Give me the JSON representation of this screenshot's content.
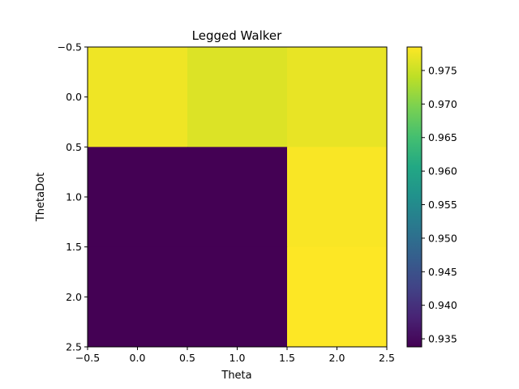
{
  "chart_data": {
    "type": "heatmap",
    "title": "Legged Walker",
    "xlabel": "Theta",
    "ylabel": "ThetaDot",
    "x_centers": [
      0,
      1,
      2
    ],
    "y_centers": [
      0,
      1,
      2
    ],
    "xlim": [
      -0.5,
      2.5
    ],
    "ylim": [
      2.5,
      -0.5
    ],
    "y_inverted": true,
    "x_ticks": [
      "−0.5",
      "0.0",
      "0.5",
      "1.0",
      "1.5",
      "2.0",
      "2.5"
    ],
    "y_ticks": [
      "−0.5",
      "0.0",
      "0.5",
      "1.0",
      "1.5",
      "2.0",
      "2.5"
    ],
    "values": [
      [
        0.9775,
        0.9762,
        0.977
      ],
      [
        0.9338,
        0.9338,
        0.9782
      ],
      [
        0.9338,
        0.9338,
        0.9785
      ]
    ],
    "colormap": "viridis",
    "color_range": [
      0.9338,
      0.9785
    ],
    "colorbar_ticks": [
      "0.935",
      "0.940",
      "0.945",
      "0.950",
      "0.955",
      "0.960",
      "0.965",
      "0.970",
      "0.975"
    ],
    "grid": false
  }
}
